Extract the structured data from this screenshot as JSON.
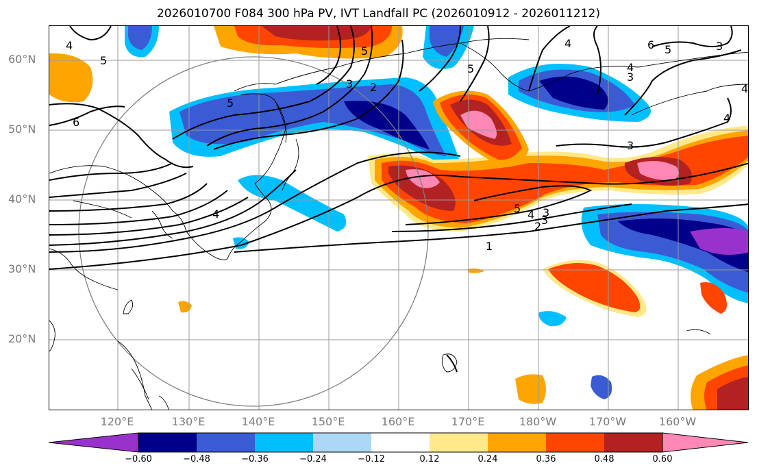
{
  "title": "2026010700 F084 300 hPa PV, IVT Landfall PC (2026010912 - 2026011212)",
  "lat_labels": [
    "60°N",
    "50°N",
    "40°N",
    "30°N",
    "20°N"
  ],
  "lon_labels": [
    "120°E",
    "130°E",
    "140°E",
    "150°E",
    "160°E",
    "170°E",
    "180°W",
    "170°W",
    "160°W"
  ],
  "colorbar": {
    "colors": [
      "#9932cc",
      "#00008b",
      "#3a5bd4",
      "#00bfff",
      "#add8f5",
      "#ffffff",
      "#ffe98a",
      "#ffa500",
      "#ff4500",
      "#b22222",
      "#ff88b4"
    ],
    "tick_labels": [
      "−0.60",
      "−0.48",
      "−0.36",
      "−0.24",
      "−0.12",
      "0.12",
      "0.24",
      "0.36",
      "0.48",
      "0.60"
    ]
  },
  "contour_labels": [
    "4",
    "5",
    "6",
    "5",
    "3",
    "2",
    "5",
    "4",
    "3",
    "5",
    "4",
    "3",
    "2",
    "1",
    "3",
    "4",
    "6",
    "5",
    "3",
    "4",
    "3",
    "5",
    "4",
    "4"
  ]
}
